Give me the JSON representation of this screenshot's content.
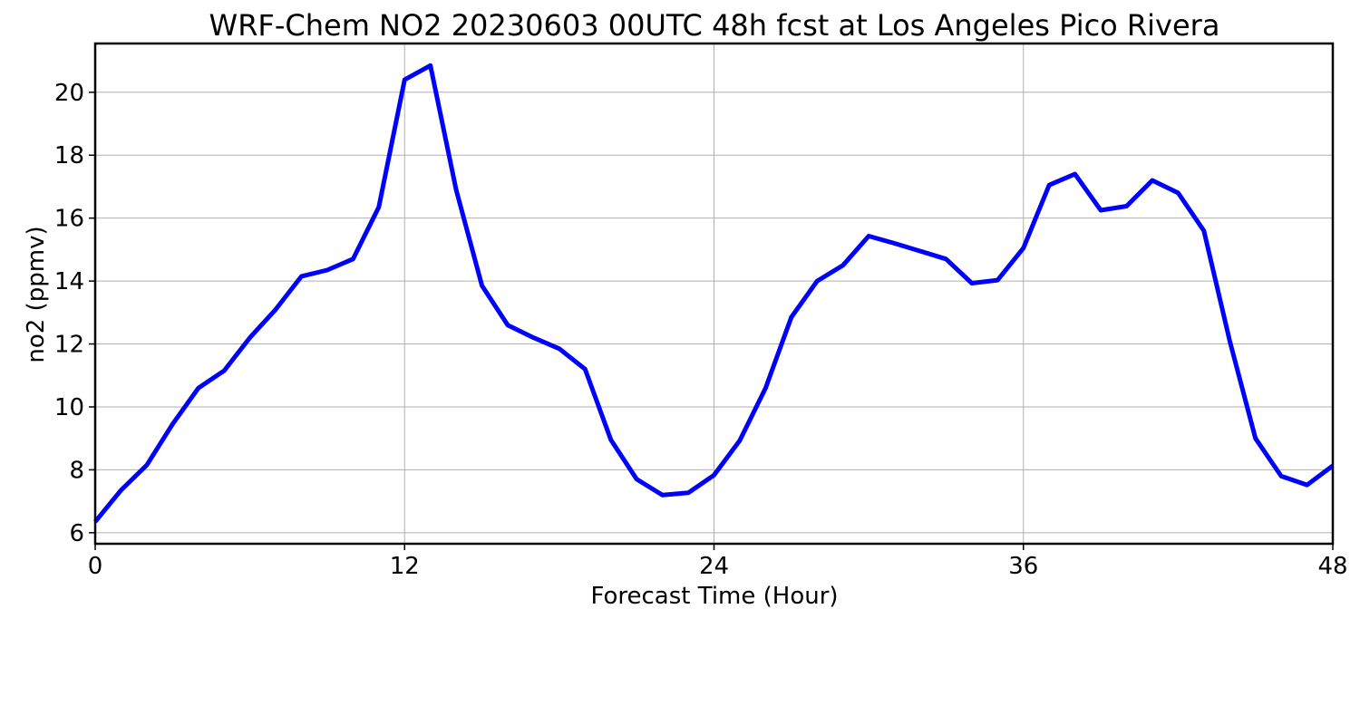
{
  "chart_data": {
    "type": "line",
    "title": "WRF-Chem NO2  20230603 00UTC 48h fcst at Los Angeles Pico Rivera",
    "xlabel": "Forecast Time (Hour)",
    "ylabel": "no2  (ppmv)",
    "xlim": [
      0,
      48
    ],
    "ylim": [
      5.65,
      21.55
    ],
    "xticks": [
      0,
      12,
      24,
      36,
      48
    ],
    "yticks": [
      6,
      8,
      10,
      12,
      14,
      16,
      18,
      20
    ],
    "grid": true,
    "series": [
      {
        "color": "#0000ff",
        "x": [
          0,
          1,
          2,
          3,
          4,
          5,
          6,
          7,
          8,
          9,
          10,
          11,
          12,
          13,
          14,
          15,
          16,
          17,
          18,
          19,
          20,
          21,
          22,
          23,
          24,
          25,
          26,
          27,
          28,
          29,
          30,
          31,
          32,
          33,
          34,
          35,
          36,
          37,
          38,
          39,
          40,
          41,
          42,
          43,
          44,
          45,
          46,
          47,
          48
        ],
        "values": [
          6.35,
          7.35,
          8.15,
          9.45,
          10.6,
          11.15,
          12.2,
          13.1,
          14.15,
          14.35,
          14.7,
          16.35,
          20.4,
          20.85,
          16.9,
          13.85,
          12.6,
          12.2,
          11.85,
          11.2,
          8.95,
          7.7,
          7.2,
          7.27,
          7.83,
          8.93,
          10.6,
          12.85,
          14.0,
          14.5,
          15.43,
          15.2,
          14.95,
          14.7,
          13.93,
          14.03,
          15.05,
          17.05,
          17.4,
          16.25,
          16.38,
          17.2,
          16.8,
          15.6,
          12.1,
          9.0,
          7.8,
          7.52,
          8.13
        ]
      }
    ]
  }
}
